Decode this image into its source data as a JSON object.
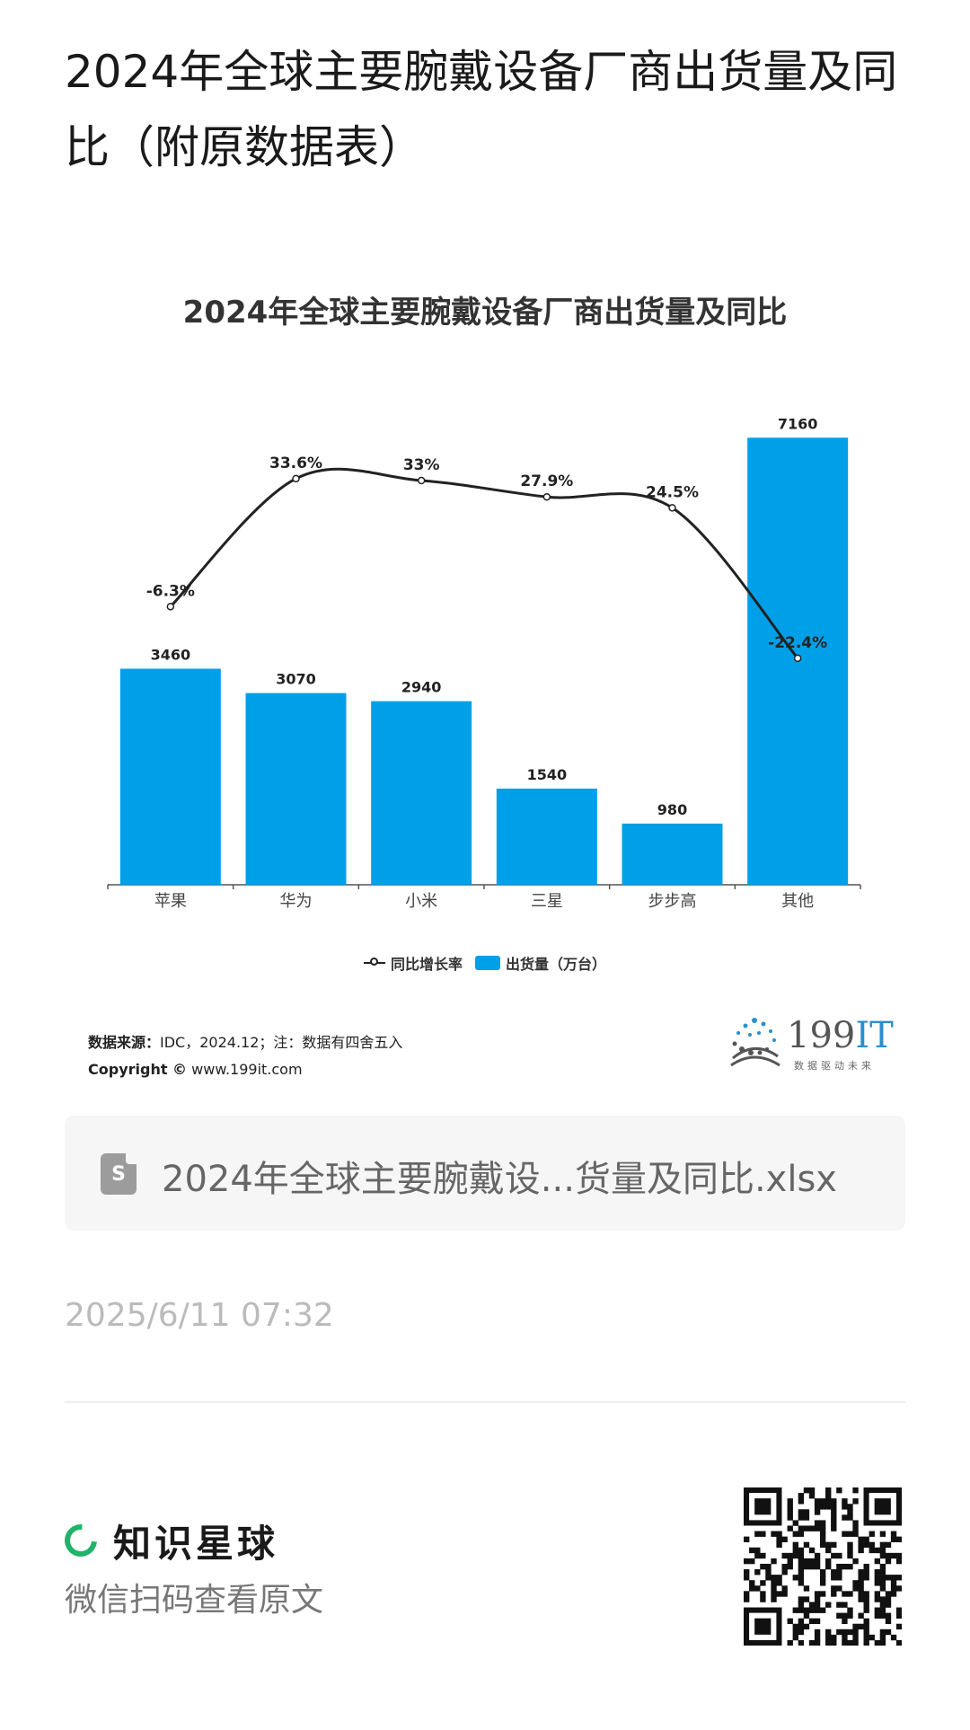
{
  "post": {
    "title": "2024年全球主要腕戴设备厂商出货量及同比（附原数据表）",
    "timestamp": "2025/6/11 07:32"
  },
  "chart_data": {
    "type": "bar",
    "title": "2024年全球主要腕戴设备厂商出货量及同比",
    "categories": [
      "苹果",
      "华为",
      "小米",
      "三星",
      "步步高",
      "其他"
    ],
    "series": [
      {
        "name": "出货量（万台）",
        "kind": "bar",
        "color": "#00A0E9",
        "values": [
          3460,
          3070,
          2940,
          1540,
          980,
          7160
        ]
      },
      {
        "name": "同比增长率",
        "kind": "line",
        "color": "#222222",
        "values": [
          -6.3,
          33.6,
          33,
          27.9,
          24.5,
          -22.4
        ],
        "unit": "%"
      }
    ],
    "bar_labels": [
      "3460",
      "3070",
      "2940",
      "1540",
      "980",
      "7160"
    ],
    "line_labels": [
      "-6.3%",
      "33.6%",
      "33%",
      "27.9%",
      "24.5%",
      "-22.4%"
    ],
    "legend": {
      "position": "bottom",
      "items": [
        "同比增长率",
        "出货量（万台）"
      ]
    },
    "grid": false
  },
  "footer": {
    "source_label": "数据来源：",
    "source_text": "IDC，2024.12；注：数据有四舍五入",
    "copyright_label": "Copyright ©",
    "copyright_site": "www.199it.com",
    "brand_name_a": "199",
    "brand_name_b": "IT",
    "brand_slogan": "数据驱动未来"
  },
  "file": {
    "icon": "spreadsheet-icon",
    "icon_letter": "S",
    "name": "2024年全球主要腕戴设...货量及同比.xlsx"
  },
  "planet": {
    "name": "知识星球",
    "hint": "微信扫码查看原文"
  },
  "colors": {
    "bar": "#00A0E9",
    "line": "#222222",
    "brand_green": "#20b46a"
  }
}
